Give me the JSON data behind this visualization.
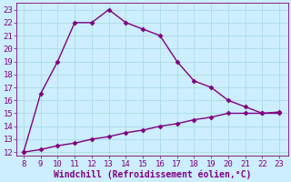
{
  "x_upper": [
    8,
    9,
    10,
    11,
    12,
    13,
    14,
    15,
    16,
    17,
    18,
    19,
    20,
    21,
    22,
    23
  ],
  "y_upper": [
    12,
    16.5,
    19,
    22,
    22,
    23,
    22,
    21.5,
    21,
    19,
    17.5,
    17,
    16,
    15.5,
    15,
    15
  ],
  "x_lower": [
    8,
    9,
    10,
    11,
    12,
    13,
    14,
    15,
    16,
    17,
    18,
    19,
    20,
    21,
    22,
    23
  ],
  "y_lower": [
    12,
    12.2,
    12.5,
    12.7,
    13.0,
    13.2,
    13.5,
    13.7,
    14.0,
    14.2,
    14.5,
    14.7,
    15.0,
    15.0,
    15.0,
    15.1
  ],
  "line_color": "#800080",
  "bg_color": "#cceeff",
  "grid_color": "#aadddd",
  "xlabel": "Windchill (Refroidissement éolien,°C)",
  "xlabel_color": "#800080",
  "xlabel_fontsize": 7,
  "tick_color": "#800080",
  "tick_fontsize": 6.5,
  "xlim": [
    7.6,
    23.5
  ],
  "ylim": [
    11.7,
    23.5
  ],
  "xticks": [
    8,
    9,
    10,
    11,
    12,
    13,
    14,
    15,
    16,
    17,
    18,
    19,
    20,
    21,
    22,
    23
  ],
  "yticks": [
    12,
    13,
    14,
    15,
    16,
    17,
    18,
    19,
    20,
    21,
    22,
    23
  ],
  "marker": "D",
  "marker_size": 2.5,
  "line_width": 1.0
}
